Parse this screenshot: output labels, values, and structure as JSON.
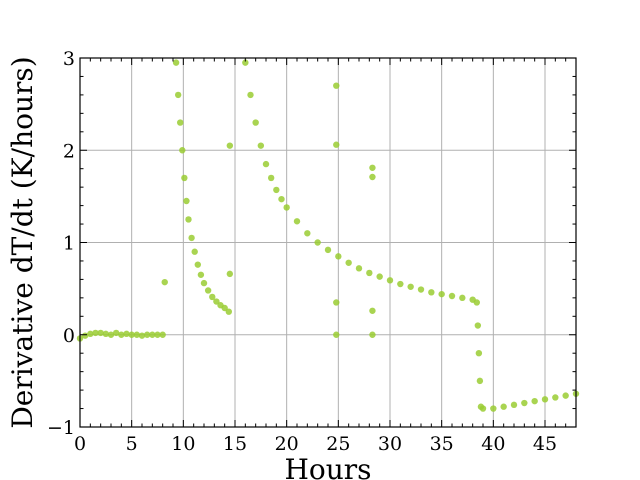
{
  "chart_data": {
    "type": "scatter",
    "xlabel": "Hours",
    "ylabel": "Derivative dT/dt (K/hours)",
    "xlim": [
      0,
      48
    ],
    "ylim": [
      -1,
      3
    ],
    "xticks": [
      0,
      5,
      10,
      15,
      20,
      25,
      30,
      35,
      40,
      45
    ],
    "yticks": [
      -1,
      0,
      1,
      2,
      3
    ],
    "xtick_labels": [
      "0",
      "5",
      "10",
      "15",
      "20",
      "25",
      "30",
      "35",
      "40",
      "45"
    ],
    "ytick_labels": [
      "−1",
      "0",
      "1",
      "2",
      "3"
    ],
    "grid": true,
    "marker_color": "#9acd32",
    "series": [
      {
        "values": [
          [
            0.0,
            -0.04
          ],
          [
            0.5,
            -0.01
          ],
          [
            1.0,
            0.01
          ],
          [
            1.5,
            0.02
          ],
          [
            2.0,
            0.02
          ],
          [
            2.5,
            0.01
          ],
          [
            3.0,
            0.0
          ],
          [
            3.5,
            0.02
          ],
          [
            4.0,
            0.0
          ],
          [
            4.5,
            0.01
          ],
          [
            5.0,
            0.0
          ],
          [
            5.5,
            0.0
          ],
          [
            6.0,
            -0.01
          ],
          [
            6.5,
            0.0
          ],
          [
            7.0,
            0.0
          ],
          [
            7.5,
            0.0
          ],
          [
            8.0,
            0.0
          ],
          [
            8.2,
            0.57
          ],
          [
            9.3,
            2.95
          ],
          [
            9.5,
            2.6
          ],
          [
            9.7,
            2.3
          ],
          [
            9.9,
            2.0
          ],
          [
            10.1,
            1.7
          ],
          [
            10.3,
            1.45
          ],
          [
            10.5,
            1.25
          ],
          [
            10.8,
            1.05
          ],
          [
            11.1,
            0.9
          ],
          [
            11.4,
            0.76
          ],
          [
            11.7,
            0.65
          ],
          [
            12.0,
            0.56
          ],
          [
            12.4,
            0.48
          ],
          [
            12.8,
            0.41
          ],
          [
            13.2,
            0.36
          ],
          [
            13.6,
            0.32
          ],
          [
            14.0,
            0.29
          ],
          [
            14.4,
            0.25
          ],
          [
            14.5,
            2.05
          ],
          [
            14.5,
            0.66
          ],
          [
            16.0,
            2.95
          ],
          [
            16.5,
            2.6
          ],
          [
            17.0,
            2.3
          ],
          [
            17.5,
            2.05
          ],
          [
            18.0,
            1.85
          ],
          [
            18.5,
            1.7
          ],
          [
            19.0,
            1.57
          ],
          [
            19.5,
            1.47
          ],
          [
            20.0,
            1.38
          ],
          [
            21.0,
            1.23
          ],
          [
            22.0,
            1.1
          ],
          [
            23.0,
            1.0
          ],
          [
            24.0,
            0.92
          ],
          [
            25.0,
            0.85
          ],
          [
            26.0,
            0.78
          ],
          [
            27.0,
            0.72
          ],
          [
            28.0,
            0.67
          ],
          [
            29.0,
            0.63
          ],
          [
            30.0,
            0.59
          ],
          [
            31.0,
            0.55
          ],
          [
            32.0,
            0.52
          ],
          [
            33.0,
            0.49
          ],
          [
            34.0,
            0.46
          ],
          [
            35.0,
            0.44
          ],
          [
            36.0,
            0.42
          ],
          [
            37.0,
            0.4
          ],
          [
            38.0,
            0.38
          ],
          [
            38.4,
            0.35
          ],
          [
            24.8,
            2.7
          ],
          [
            24.8,
            2.06
          ],
          [
            24.8,
            0.35
          ],
          [
            24.8,
            0.0
          ],
          [
            28.3,
            1.81
          ],
          [
            28.3,
            1.71
          ],
          [
            28.3,
            0.26
          ],
          [
            28.3,
            0.0
          ],
          [
            38.5,
            0.1
          ],
          [
            38.6,
            -0.2
          ],
          [
            38.7,
            -0.5
          ],
          [
            38.8,
            -0.78
          ],
          [
            39.0,
            -0.8
          ],
          [
            40.0,
            -0.8
          ],
          [
            41.0,
            -0.78
          ],
          [
            42.0,
            -0.76
          ],
          [
            43.0,
            -0.74
          ],
          [
            44.0,
            -0.72
          ],
          [
            45.0,
            -0.7
          ],
          [
            46.0,
            -0.68
          ],
          [
            47.0,
            -0.66
          ],
          [
            48.0,
            -0.64
          ]
        ]
      }
    ]
  }
}
